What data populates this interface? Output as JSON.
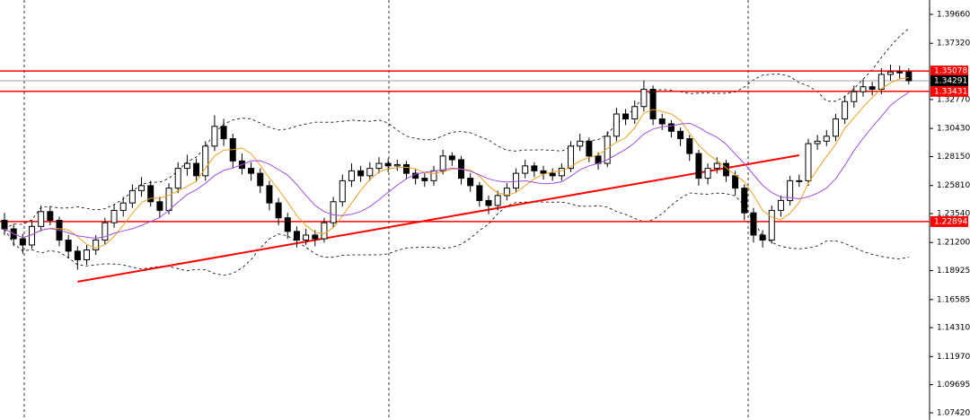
{
  "chart_data": {
    "type": "candlestick",
    "ylim": [
      1.06839,
      1.40822
    ],
    "yticks": [
      {
        "value": 1.3966,
        "label": "1.39660"
      },
      {
        "value": 1.3732,
        "label": "1.37320"
      },
      {
        "value": 1.3277,
        "label": "1.32770"
      },
      {
        "value": 1.3043,
        "label": "1.30430"
      },
      {
        "value": 1.2815,
        "label": "1.28150"
      },
      {
        "value": 1.2581,
        "label": "1.25810"
      },
      {
        "value": 1.2354,
        "label": "1.23540"
      },
      {
        "value": 1.212,
        "label": "1.21200"
      },
      {
        "value": 1.18925,
        "label": "1.18925"
      },
      {
        "value": 1.16585,
        "label": "1.16585"
      },
      {
        "value": 1.1431,
        "label": "1.14310"
      },
      {
        "value": 1.1197,
        "label": "1.11970"
      },
      {
        "value": 1.09695,
        "label": "1.09695"
      },
      {
        "value": 1.0742,
        "label": "1.07420"
      }
    ],
    "up_color": "#ffffff",
    "down_color": "#000000",
    "open": [
      1.23,
      1.223,
      1.215,
      1.21,
      1.225,
      1.237,
      1.23,
      1.214,
      1.205,
      1.198,
      1.206,
      1.214,
      1.228,
      1.238,
      1.244,
      1.254,
      1.258,
      1.245,
      1.238,
      1.256,
      1.272,
      1.276,
      1.266,
      1.29,
      1.306,
      1.296,
      1.278,
      1.272,
      1.268,
      1.258,
      1.244,
      1.232,
      1.221,
      1.214,
      1.218,
      1.215,
      1.228,
      1.245,
      1.262,
      1.27,
      1.266,
      1.272,
      1.276,
      1.274,
      1.275,
      1.268,
      1.264,
      1.262,
      1.27,
      1.282,
      1.279,
      1.264,
      1.258,
      1.246,
      1.242,
      1.25,
      1.256,
      1.268,
      1.274,
      1.27,
      1.268,
      1.266,
      1.272,
      1.29,
      1.294,
      1.282,
      1.276,
      1.298,
      1.316,
      1.312,
      1.322,
      1.336,
      1.312,
      1.308,
      1.302,
      1.296,
      1.284,
      1.264,
      1.272,
      1.276,
      1.266,
      1.256,
      1.236,
      1.218,
      1.214,
      1.238,
      1.246,
      1.262,
      1.262,
      1.292,
      1.294,
      1.298,
      1.312,
      1.326,
      1.334,
      1.338,
      1.336,
      1.348,
      1.35,
      1.35
    ],
    "high": [
      1.236,
      1.227,
      1.219,
      1.23,
      1.242,
      1.241,
      1.233,
      1.218,
      1.209,
      1.21,
      1.218,
      1.232,
      1.243,
      1.249,
      1.259,
      1.265,
      1.262,
      1.249,
      1.26,
      1.277,
      1.283,
      1.28,
      1.294,
      1.315,
      1.312,
      1.3,
      1.284,
      1.277,
      1.272,
      1.262,
      1.248,
      1.236,
      1.225,
      1.223,
      1.222,
      1.232,
      1.249,
      1.267,
      1.276,
      1.274,
      1.277,
      1.281,
      1.28,
      1.279,
      1.278,
      1.272,
      1.268,
      1.274,
      1.287,
      1.285,
      1.282,
      1.268,
      1.261,
      1.25,
      1.254,
      1.26,
      1.272,
      1.279,
      1.277,
      1.274,
      1.272,
      1.276,
      1.294,
      1.3,
      1.297,
      1.285,
      1.302,
      1.321,
      1.32,
      1.327,
      1.343,
      1.339,
      1.316,
      1.311,
      1.305,
      1.299,
      1.287,
      1.276,
      1.281,
      1.279,
      1.27,
      1.259,
      1.24,
      1.222,
      1.242,
      1.25,
      1.266,
      1.267,
      1.296,
      1.299,
      1.303,
      1.316,
      1.331,
      1.339,
      1.344,
      1.342,
      1.353,
      1.356,
      1.355,
      1.353
    ],
    "low": [
      1.218,
      1.209,
      1.203,
      1.207,
      1.221,
      1.226,
      1.209,
      1.199,
      1.19,
      1.194,
      1.202,
      1.21,
      1.224,
      1.233,
      1.24,
      1.249,
      1.241,
      1.232,
      1.235,
      1.252,
      1.266,
      1.261,
      1.262,
      1.286,
      1.29,
      1.272,
      1.267,
      1.262,
      1.252,
      1.238,
      1.226,
      1.215,
      1.208,
      1.21,
      1.209,
      1.212,
      1.224,
      1.241,
      1.257,
      1.261,
      1.262,
      1.268,
      1.269,
      1.27,
      1.263,
      1.259,
      1.257,
      1.258,
      1.267,
      1.274,
      1.259,
      1.253,
      1.241,
      1.235,
      1.238,
      1.246,
      1.253,
      1.264,
      1.265,
      1.263,
      1.262,
      1.262,
      1.269,
      1.286,
      1.277,
      1.271,
      1.273,
      1.294,
      1.307,
      1.308,
      1.318,
      1.307,
      1.303,
      1.297,
      1.29,
      1.278,
      1.258,
      1.259,
      1.268,
      1.261,
      1.25,
      1.23,
      1.212,
      1.208,
      1.211,
      1.233,
      1.242,
      1.257,
      1.258,
      1.287,
      1.29,
      1.294,
      1.308,
      1.321,
      1.33,
      1.331,
      1.332,
      1.343,
      1.344,
      1.34
    ],
    "close": [
      1.223,
      1.215,
      1.21,
      1.225,
      1.237,
      1.23,
      1.214,
      1.205,
      1.198,
      1.206,
      1.214,
      1.228,
      1.238,
      1.244,
      1.254,
      1.258,
      1.245,
      1.238,
      1.256,
      1.272,
      1.276,
      1.266,
      1.29,
      1.306,
      1.296,
      1.278,
      1.272,
      1.268,
      1.258,
      1.244,
      1.232,
      1.221,
      1.214,
      1.218,
      1.215,
      1.228,
      1.245,
      1.262,
      1.27,
      1.266,
      1.272,
      1.276,
      1.274,
      1.275,
      1.268,
      1.264,
      1.262,
      1.27,
      1.282,
      1.279,
      1.264,
      1.258,
      1.246,
      1.242,
      1.25,
      1.256,
      1.268,
      1.274,
      1.27,
      1.268,
      1.266,
      1.272,
      1.29,
      1.294,
      1.282,
      1.276,
      1.298,
      1.316,
      1.312,
      1.322,
      1.336,
      1.312,
      1.308,
      1.302,
      1.296,
      1.284,
      1.264,
      1.272,
      1.276,
      1.266,
      1.256,
      1.236,
      1.218,
      1.214,
      1.238,
      1.246,
      1.262,
      1.262,
      1.292,
      1.294,
      1.298,
      1.312,
      1.326,
      1.334,
      1.338,
      1.336,
      1.348,
      1.35,
      1.35,
      1.3429
    ],
    "hlines": [
      1.35078,
      1.33431,
      1.22894
    ],
    "hline_color": "#ff0000",
    "price_line": 1.34291,
    "trendline": {
      "x": [
        8,
        87
      ],
      "values": [
        1.1803,
        1.2826
      ],
      "color": "#ff0000"
    }
  }
}
